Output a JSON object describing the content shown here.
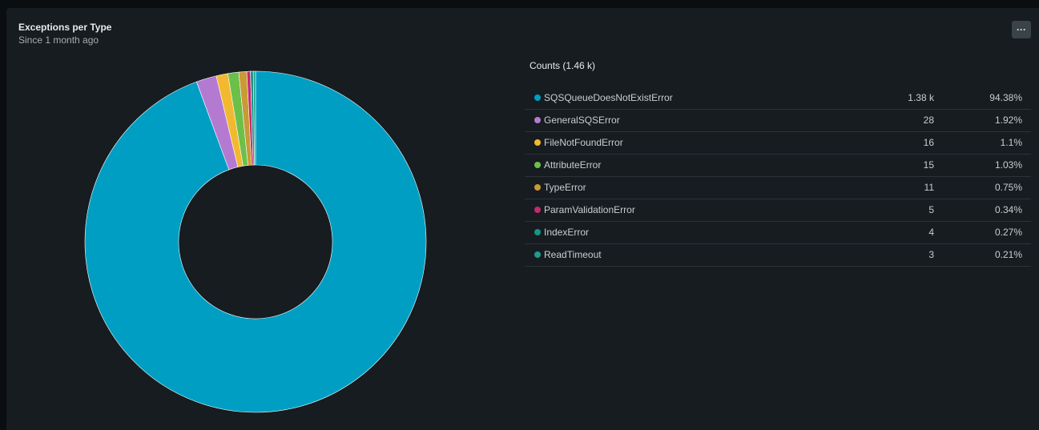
{
  "widget": {
    "title": "Exceptions per Type",
    "subtitle": "Since 1 month ago",
    "menu_label": "···"
  },
  "legend": {
    "header": "Counts (1.46 k)"
  },
  "chart_data": {
    "type": "pie",
    "title": "Exceptions per Type",
    "subtitle": "Since 1 month ago",
    "total_label": "Counts (1.46 k)",
    "donut": true,
    "slices": [
      {
        "name": "SQSQueueDoesNotExistError",
        "count": 1380,
        "count_label": "1.38 k",
        "percent": 94.38,
        "percent_label": "94.38%",
        "color": "#009ec2"
      },
      {
        "name": "GeneralSQSError",
        "count": 28,
        "count_label": "28",
        "percent": 1.92,
        "percent_label": "1.92%",
        "color": "#b47ad2"
      },
      {
        "name": "FileNotFoundError",
        "count": 16,
        "count_label": "16",
        "percent": 1.1,
        "percent_label": "1.1%",
        "color": "#f2b930"
      },
      {
        "name": "AttributeError",
        "count": 15,
        "count_label": "15",
        "percent": 1.03,
        "percent_label": "1.03%",
        "color": "#6cc04a"
      },
      {
        "name": "TypeError",
        "count": 11,
        "count_label": "11",
        "percent": 0.75,
        "percent_label": "0.75%",
        "color": "#c99a35"
      },
      {
        "name": "ParamValidationError",
        "count": 5,
        "count_label": "5",
        "percent": 0.34,
        "percent_label": "0.34%",
        "color": "#c4296f"
      },
      {
        "name": "IndexError",
        "count": 4,
        "count_label": "4",
        "percent": 0.27,
        "percent_label": "0.27%",
        "color": "#13978b"
      },
      {
        "name": "ReadTimeout",
        "count": 3,
        "count_label": "3",
        "percent": 0.21,
        "percent_label": "0.21%",
        "color": "#1a9e8c"
      }
    ]
  }
}
